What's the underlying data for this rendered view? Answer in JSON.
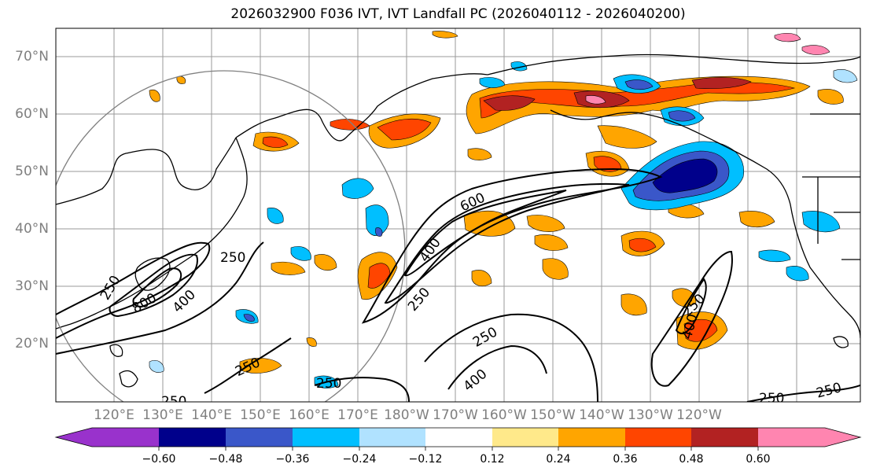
{
  "title": "2026032900 F036 IVT, IVT Landfall PC (2026040112 - 2026040200)",
  "lat_labels": [
    "70°N",
    "60°N",
    "50°N",
    "40°N",
    "30°N",
    "20°N"
  ],
  "lon_labels": [
    "120°E",
    "130°E",
    "140°E",
    "150°E",
    "160°E",
    "170°E",
    "180°W",
    "170°W",
    "160°W",
    "150°W",
    "140°W",
    "130°W",
    "120°W"
  ],
  "colorbar": {
    "ticks": [
      "−0.60",
      "−0.48",
      "−0.36",
      "−0.24",
      "−0.12",
      "0.12",
      "0.24",
      "0.36",
      "0.48",
      "0.60"
    ],
    "colors": [
      "#9932cc",
      "#00008b",
      "#3a57c9",
      "#00bfff",
      "#b0e2ff",
      "#ffffff",
      "#ffe98a",
      "#ffa500",
      "#ff4500",
      "#b22222",
      "#ff85b0"
    ]
  },
  "contour_labels": [
    "250",
    "250",
    "600",
    "400",
    "250",
    "250",
    "800",
    "400",
    "250",
    "250",
    "250",
    "400",
    "250",
    "400",
    "250",
    "250"
  ],
  "colors": {
    "positive_low": "#ffe98a",
    "positive_mid": "#ffa500",
    "positive_high": "#ff4500",
    "positive_max": "#b22222",
    "negative_low": "#b0e2ff",
    "negative_mid": "#00bfff",
    "negative_high": "#3a57c9",
    "negative_max": "#00008b"
  }
}
